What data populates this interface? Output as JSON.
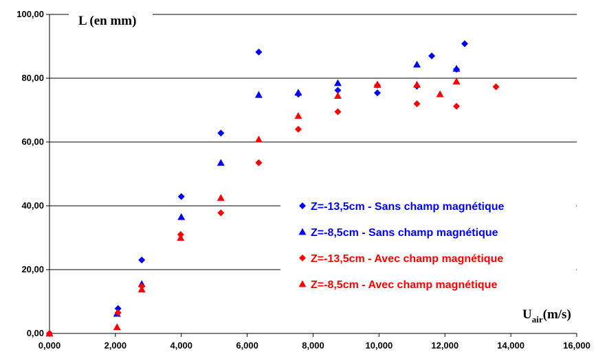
{
  "chart_data": {
    "type": "scatter",
    "title": "",
    "ylabel": "L (en mm)",
    "xlabel": {
      "base": "U",
      "subscript": "air",
      "unit": "(m/s)"
    },
    "xlim": [
      0,
      16
    ],
    "ylim": [
      0,
      100
    ],
    "x_ticks": [
      "0,000",
      "2,000",
      "4,000",
      "6,000",
      "8,000",
      "10,000",
      "12,000",
      "14,000",
      "16,000"
    ],
    "y_ticks": [
      "0,00",
      "20,00",
      "40,00",
      "60,00",
      "80,00",
      "100,00"
    ],
    "grid": "horizontal",
    "legend_position": "center-right",
    "series": [
      {
        "name": "Z=-13,5cm - Sans champ magnétique",
        "color": "#0000ff",
        "marker": "diamond",
        "points": [
          [
            0,
            0
          ],
          [
            2.08,
            7.8
          ],
          [
            2.8,
            23
          ],
          [
            4.0,
            42.9
          ],
          [
            5.2,
            62.8
          ],
          [
            6.35,
            88.2
          ],
          [
            7.55,
            75.0
          ],
          [
            8.75,
            76.2
          ],
          [
            9.95,
            75.4
          ],
          [
            11.15,
            77.5
          ],
          [
            11.6,
            87.0
          ],
          [
            12.35,
            82.8
          ],
          [
            12.6,
            90.8
          ]
        ]
      },
      {
        "name": "Z=-8,5cm - Sans champ magnétique",
        "color": "#0000ff",
        "marker": "triangle",
        "points": [
          [
            0,
            0
          ],
          [
            2.05,
            6.2
          ],
          [
            2.8,
            15.5
          ],
          [
            4.0,
            36.5
          ],
          [
            5.2,
            53.5
          ],
          [
            6.35,
            74.8
          ],
          [
            7.55,
            75.5
          ],
          [
            8.75,
            78.5
          ],
          [
            9.95,
            78.0
          ],
          [
            11.15,
            84.3
          ],
          [
            12.35,
            83.0
          ]
        ]
      },
      {
        "name": "Z=-13,5cm - Avec champ magnétique",
        "color": "#ff0000",
        "marker": "diamond",
        "points": [
          [
            0,
            0
          ],
          [
            2.08,
            6.5
          ],
          [
            2.8,
            14.8
          ],
          [
            3.98,
            31.0
          ],
          [
            5.2,
            37.8
          ],
          [
            6.35,
            53.5
          ],
          [
            7.55,
            64.0
          ],
          [
            8.75,
            69.5
          ],
          [
            9.95,
            77.8
          ],
          [
            11.15,
            72.0
          ],
          [
            12.35,
            71.2
          ],
          [
            13.55,
            77.3
          ]
        ]
      },
      {
        "name": "Z=-8,5cm - Avec champ magnétique",
        "color": "#ff0000",
        "marker": "triangle",
        "points": [
          [
            0,
            0
          ],
          [
            2.05,
            2.0
          ],
          [
            2.8,
            13.8
          ],
          [
            3.98,
            30.0
          ],
          [
            5.2,
            42.5
          ],
          [
            6.35,
            60.8
          ],
          [
            7.55,
            68.2
          ],
          [
            8.75,
            74.5
          ],
          [
            9.95,
            78.0
          ],
          [
            11.15,
            78.0
          ],
          [
            11.85,
            75.0
          ],
          [
            12.35,
            79.0
          ]
        ]
      }
    ]
  }
}
